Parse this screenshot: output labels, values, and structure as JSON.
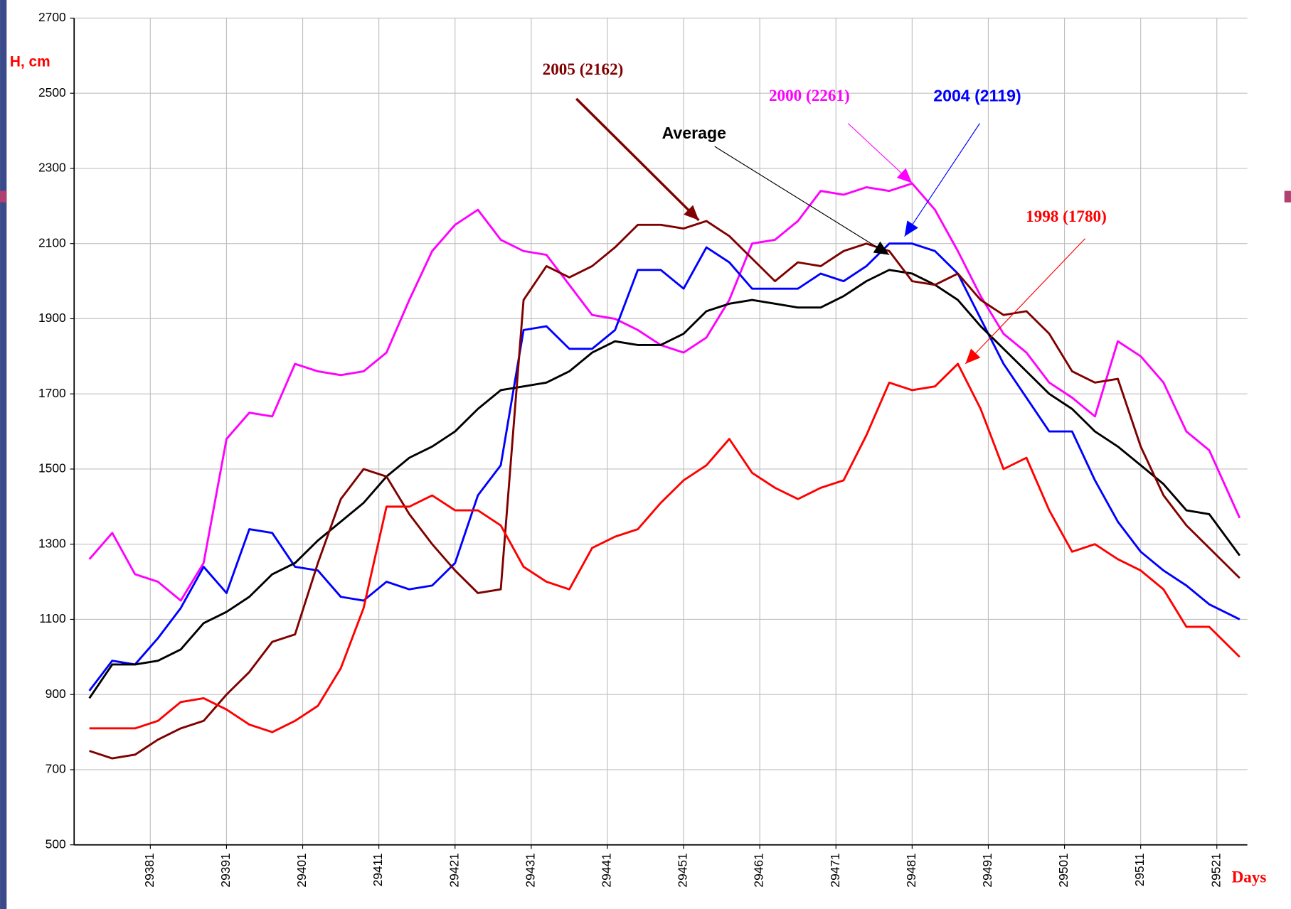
{
  "chart_data": {
    "type": "line",
    "y_label": "H, cm",
    "x_label": "Days",
    "xlim": [
      29371,
      29525
    ],
    "ylim": [
      500,
      2700
    ],
    "xticks": [
      29381,
      29391,
      29401,
      29411,
      29421,
      29431,
      29441,
      29451,
      29461,
      29471,
      29481,
      29491,
      29501,
      29511,
      29521
    ],
    "yticks": [
      500,
      700,
      900,
      1100,
      1300,
      1500,
      1700,
      1900,
      2100,
      2300,
      2500,
      2700
    ],
    "grid": true,
    "x": [
      29373,
      29376,
      29379,
      29382,
      29385,
      29388,
      29391,
      29394,
      29397,
      29400,
      29403,
      29406,
      29409,
      29412,
      29415,
      29418,
      29421,
      29424,
      29427,
      29430,
      29433,
      29436,
      29439,
      29442,
      29445,
      29448,
      29451,
      29454,
      29457,
      29460,
      29463,
      29466,
      29469,
      29472,
      29475,
      29478,
      29481,
      29484,
      29487,
      29490,
      29493,
      29496,
      29499,
      29502,
      29505,
      29508,
      29511,
      29514,
      29517,
      29520,
      29524
    ],
    "series": [
      {
        "color": "#ff00ff",
        "values": [
          1260,
          1330,
          1220,
          1200,
          1150,
          1250,
          1580,
          1650,
          1640,
          1780,
          1760,
          1750,
          1760,
          1810,
          1950,
          2080,
          2150,
          2190,
          2110,
          2080,
          2070,
          1990,
          1910,
          1900,
          1870,
          1830,
          1810,
          1850,
          1950,
          2100,
          2110,
          2160,
          2240,
          2230,
          2250,
          2240,
          2260,
          2190,
          2080,
          1960,
          1860,
          1810,
          1730,
          1690,
          1640,
          1840,
          1800,
          1730,
          1600,
          1550,
          1370
        ]
      },
      {
        "color": "#0000ff",
        "values": [
          910,
          990,
          980,
          1050,
          1130,
          1240,
          1170,
          1340,
          1330,
          1240,
          1230,
          1160,
          1150,
          1200,
          1180,
          1190,
          1250,
          1430,
          1510,
          1870,
          1880,
          1820,
          1820,
          1870,
          2030,
          2030,
          1980,
          2090,
          2050,
          1980,
          1980,
          1980,
          2020,
          2000,
          2040,
          2100,
          2100,
          2080,
          2020,
          1900,
          1780,
          1690,
          1600,
          1600,
          1470,
          1360,
          1280,
          1230,
          1190,
          1140,
          1100
        ]
      },
      {
        "color": "#000000",
        "values": [
          890,
          980,
          980,
          990,
          1020,
          1090,
          1120,
          1160,
          1220,
          1250,
          1310,
          1360,
          1410,
          1480,
          1530,
          1560,
          1600,
          1660,
          1710,
          1720,
          1730,
          1760,
          1810,
          1840,
          1830,
          1830,
          1860,
          1920,
          1940,
          1950,
          1940,
          1930,
          1930,
          1960,
          2000,
          2030,
          2020,
          1990,
          1950,
          1880,
          1820,
          1760,
          1700,
          1660,
          1600,
          1560,
          1510,
          1460,
          1390,
          1380,
          1270
        ]
      },
      {
        "color": "#800000",
        "values": [
          750,
          730,
          740,
          780,
          810,
          830,
          900,
          960,
          1040,
          1060,
          1250,
          1420,
          1500,
          1480,
          1380,
          1300,
          1230,
          1170,
          1180,
          1950,
          2040,
          2010,
          2040,
          2090,
          2150,
          2150,
          2140,
          2160,
          2120,
          2060,
          2000,
          2050,
          2040,
          2080,
          2100,
          2080,
          2000,
          1990,
          2020,
          1950,
          1910,
          1920,
          1860,
          1760,
          1730,
          1740,
          1560,
          1430,
          1350,
          1290,
          1210
        ]
      },
      {
        "color": "#ff0000",
        "values": [
          810,
          810,
          810,
          830,
          880,
          890,
          860,
          820,
          800,
          830,
          870,
          970,
          1130,
          1400,
          1400,
          1430,
          1390,
          1390,
          1350,
          1240,
          1200,
          1180,
          1290,
          1320,
          1340,
          1410,
          1470,
          1510,
          1580,
          1490,
          1450,
          1420,
          1450,
          1470,
          1590,
          1730,
          1710,
          1720,
          1780,
          1660,
          1500,
          1530,
          1390,
          1280,
          1300,
          1260,
          1230,
          1180,
          1080,
          1080,
          1000
        ]
      }
    ],
    "annotations": [
      {
        "text": "2005 (2162)",
        "color": "#800000",
        "x": 29453,
        "y": 2162
      },
      {
        "text": "Average",
        "color": "#000000",
        "x": 29478,
        "y": 2070
      },
      {
        "text": "2000 (2261)",
        "color": "#ff00ff",
        "x": 29481,
        "y": 2261
      },
      {
        "text": "2004 (2119)",
        "color": "#0000ff",
        "x": 29480,
        "y": 2119
      },
      {
        "text": "1998 (1780)",
        "color": "#ff0000",
        "x": 29488,
        "y": 1780
      }
    ]
  }
}
